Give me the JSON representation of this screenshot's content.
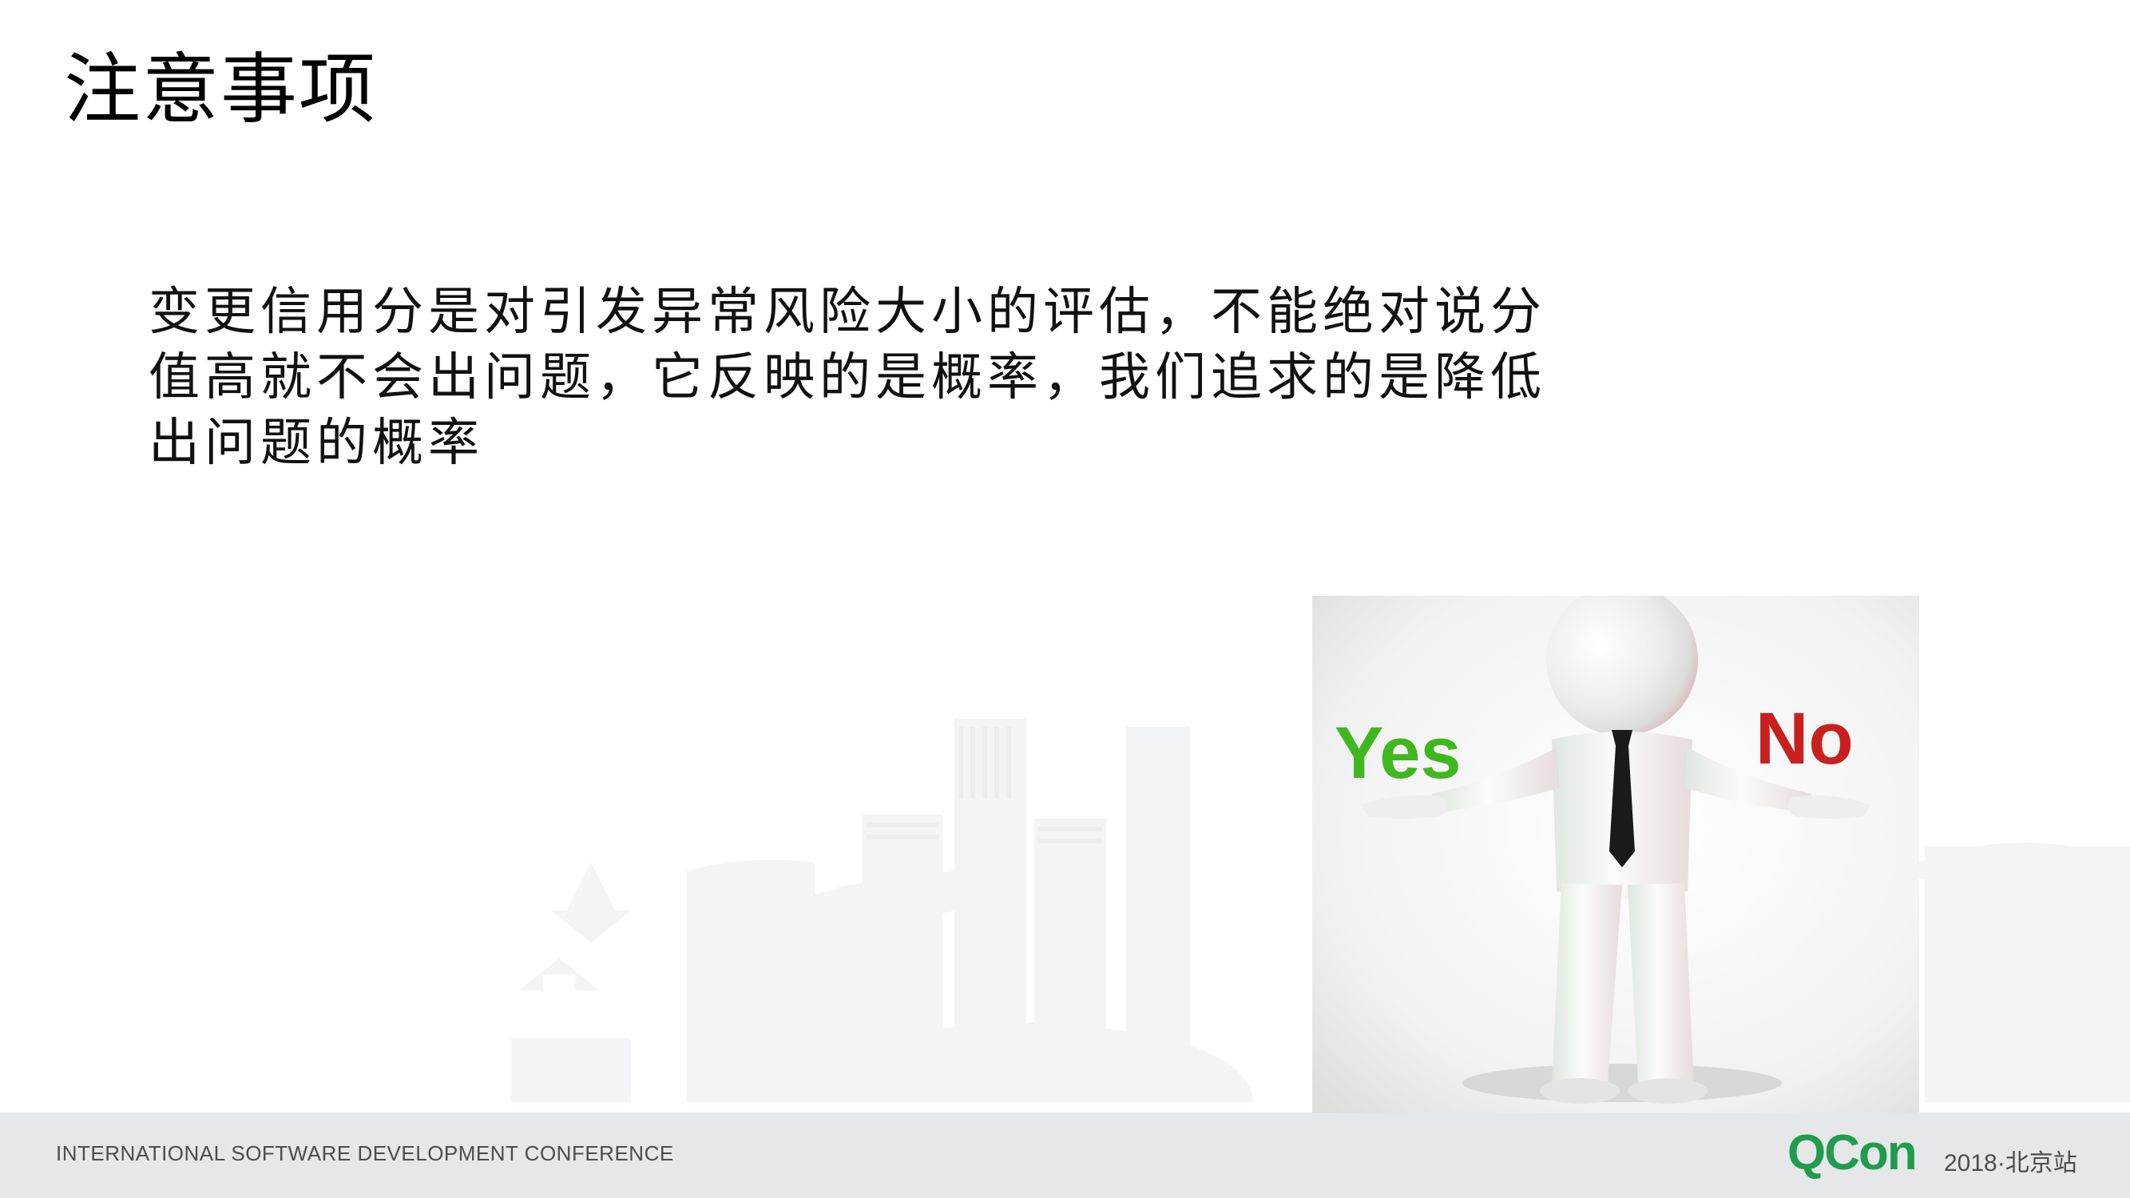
{
  "slide": {
    "title": "注意事项",
    "body": "变更信用分是对引发异常风险大小的评估，不能绝对说分值高就不会出问题，它反映的是概率，我们追求的是降低出问题的概率"
  },
  "illustration": {
    "yes_label": "Yes",
    "no_label": "No",
    "colors": {
      "yes": "#3fb81f",
      "no": "#c8201e",
      "tie": "#1a1a1a"
    }
  },
  "footer": {
    "conference_name": "INTERNATIONAL SOFTWARE DEVELOPMENT CONFERENCE",
    "logo": "QCon",
    "edition": "2018·北京站"
  },
  "colors": {
    "brand_green": "#1f9c4d",
    "footer_bg": "#e6e7e9"
  }
}
